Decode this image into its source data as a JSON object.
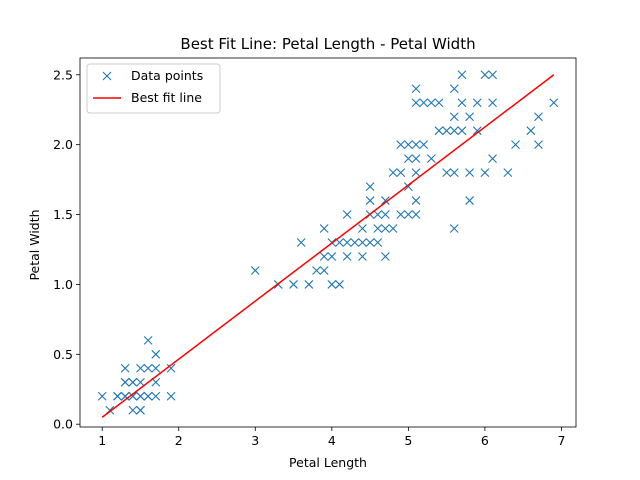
{
  "chart_data": {
    "type": "scatter",
    "title": "Best Fit Line: Petal Length - Petal Width",
    "xlabel": "Petal Length",
    "ylabel": "Petal Width",
    "xlim": [
      0.71,
      7.19
    ],
    "ylim": [
      -0.02,
      2.62
    ],
    "xticks": [
      1,
      2,
      3,
      4,
      5,
      6,
      7
    ],
    "xtick_labels": [
      "1",
      "2",
      "3",
      "4",
      "5",
      "6",
      "7"
    ],
    "yticks": [
      0.0,
      0.5,
      1.0,
      1.5,
      2.0,
      2.5
    ],
    "ytick_labels": [
      "0.0",
      "0.5",
      "1.0",
      "1.5",
      "2.0",
      "2.5"
    ],
    "grid": false,
    "legend_position": "top-left",
    "series": [
      {
        "name": "Data points",
        "marker": "x",
        "color": "#1f77b4",
        "points": [
          [
            1.0,
            0.2
          ],
          [
            1.1,
            0.1
          ],
          [
            1.2,
            0.2
          ],
          [
            1.2,
            0.2
          ],
          [
            1.3,
            0.2
          ],
          [
            1.3,
            0.3
          ],
          [
            1.3,
            0.4
          ],
          [
            1.3,
            0.2
          ],
          [
            1.3,
            0.3
          ],
          [
            1.4,
            0.2
          ],
          [
            1.4,
            0.3
          ],
          [
            1.4,
            0.1
          ],
          [
            1.4,
            0.2
          ],
          [
            1.4,
            0.3
          ],
          [
            1.5,
            0.2
          ],
          [
            1.5,
            0.4
          ],
          [
            1.5,
            0.1
          ],
          [
            1.5,
            0.3
          ],
          [
            1.5,
            0.2
          ],
          [
            1.5,
            0.1
          ],
          [
            1.6,
            0.2
          ],
          [
            1.6,
            0.4
          ],
          [
            1.6,
            0.6
          ],
          [
            1.6,
            0.2
          ],
          [
            1.7,
            0.4
          ],
          [
            1.7,
            0.3
          ],
          [
            1.7,
            0.5
          ],
          [
            1.7,
            0.2
          ],
          [
            1.9,
            0.4
          ],
          [
            1.9,
            0.2
          ],
          [
            3.0,
            1.1
          ],
          [
            3.3,
            1.0
          ],
          [
            3.5,
            1.0
          ],
          [
            3.6,
            1.3
          ],
          [
            3.7,
            1.0
          ],
          [
            3.8,
            1.1
          ],
          [
            3.9,
            1.1
          ],
          [
            3.9,
            1.4
          ],
          [
            3.9,
            1.2
          ],
          [
            4.0,
            1.3
          ],
          [
            4.0,
            1.0
          ],
          [
            4.0,
            1.2
          ],
          [
            4.1,
            1.3
          ],
          [
            4.1,
            1.0
          ],
          [
            4.2,
            1.3
          ],
          [
            4.2,
            1.2
          ],
          [
            4.2,
            1.5
          ],
          [
            4.3,
            1.3
          ],
          [
            4.4,
            1.4
          ],
          [
            4.4,
            1.3
          ],
          [
            4.4,
            1.2
          ],
          [
            4.5,
            1.5
          ],
          [
            4.5,
            1.3
          ],
          [
            4.5,
            1.7
          ],
          [
            4.5,
            1.6
          ],
          [
            4.6,
            1.5
          ],
          [
            4.6,
            1.3
          ],
          [
            4.6,
            1.4
          ],
          [
            4.7,
            1.4
          ],
          [
            4.7,
            1.2
          ],
          [
            4.7,
            1.5
          ],
          [
            4.7,
            1.6
          ],
          [
            4.8,
            1.8
          ],
          [
            4.8,
            1.4
          ],
          [
            4.9,
            1.5
          ],
          [
            4.9,
            1.8
          ],
          [
            4.9,
            2.0
          ],
          [
            5.0,
            1.7
          ],
          [
            5.0,
            1.5
          ],
          [
            5.0,
            2.0
          ],
          [
            5.0,
            1.9
          ],
          [
            5.1,
            1.6
          ],
          [
            5.1,
            1.5
          ],
          [
            5.1,
            1.8
          ],
          [
            5.1,
            1.9
          ],
          [
            5.1,
            2.0
          ],
          [
            5.1,
            2.3
          ],
          [
            5.1,
            2.4
          ],
          [
            5.2,
            2.0
          ],
          [
            5.2,
            2.3
          ],
          [
            5.3,
            1.9
          ],
          [
            5.3,
            2.3
          ],
          [
            5.4,
            2.1
          ],
          [
            5.4,
            2.3
          ],
          [
            5.5,
            1.8
          ],
          [
            5.5,
            2.1
          ],
          [
            5.6,
            1.4
          ],
          [
            5.6,
            1.8
          ],
          [
            5.6,
            2.1
          ],
          [
            5.6,
            2.2
          ],
          [
            5.6,
            2.4
          ],
          [
            5.7,
            2.1
          ],
          [
            5.7,
            2.3
          ],
          [
            5.7,
            2.5
          ],
          [
            5.8,
            1.6
          ],
          [
            5.8,
            1.8
          ],
          [
            5.8,
            2.2
          ],
          [
            5.9,
            2.1
          ],
          [
            5.9,
            2.3
          ],
          [
            6.0,
            1.8
          ],
          [
            6.0,
            2.5
          ],
          [
            6.1,
            1.9
          ],
          [
            6.1,
            2.3
          ],
          [
            6.1,
            2.5
          ],
          [
            6.3,
            1.8
          ],
          [
            6.4,
            2.0
          ],
          [
            6.6,
            2.1
          ],
          [
            6.7,
            2.0
          ],
          [
            6.7,
            2.2
          ],
          [
            6.9,
            2.3
          ]
        ]
      },
      {
        "name": "Best fit line",
        "type": "line",
        "color": "#ff0000",
        "points": [
          [
            1.0,
            0.05
          ],
          [
            6.9,
            2.5
          ]
        ]
      }
    ]
  }
}
